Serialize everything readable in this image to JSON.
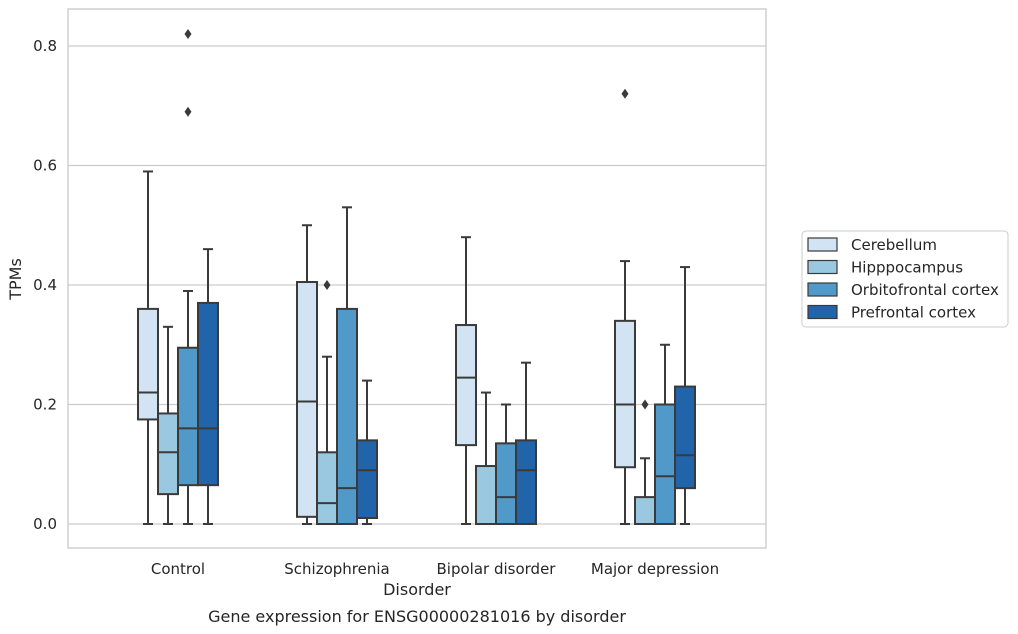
{
  "caption": "Gene expression for ENSG00000281016 by disorder",
  "chart_data": {
    "type": "box",
    "xlabel": "Disorder",
    "ylabel": "TPMs",
    "ylim": [
      -0.04,
      0.86
    ],
    "yticks": [
      "0.0",
      "0.2",
      "0.4",
      "0.6",
      "0.8"
    ],
    "grid": true,
    "legend_position": "right",
    "categories": [
      "Control",
      "Schizophrenia",
      "Bipolar disorder",
      "Major depression"
    ],
    "series": [
      {
        "name": "Cerebellum",
        "color": "#d2e3f3",
        "boxes": [
          {
            "whislo": 0.0,
            "q1": 0.175,
            "med": 0.22,
            "q3": 0.36,
            "whishi": 0.59,
            "fliers": []
          },
          {
            "whislo": 0.0,
            "q1": 0.012,
            "med": 0.205,
            "q3": 0.405,
            "whishi": 0.5,
            "fliers": []
          },
          {
            "whislo": 0.0,
            "q1": 0.132,
            "med": 0.245,
            "q3": 0.333,
            "whishi": 0.48,
            "fliers": []
          },
          {
            "whislo": 0.0,
            "q1": 0.095,
            "med": 0.2,
            "q3": 0.34,
            "whishi": 0.44,
            "fliers": [
              0.72
            ]
          }
        ]
      },
      {
        "name": "Hipppocampus",
        "color": "#9ac8e0",
        "boxes": [
          {
            "whislo": 0.0,
            "q1": 0.05,
            "med": 0.12,
            "q3": 0.185,
            "whishi": 0.33,
            "fliers": []
          },
          {
            "whislo": 0.0,
            "q1": 0.0,
            "med": 0.035,
            "q3": 0.12,
            "whishi": 0.28,
            "fliers": [
              0.4
            ]
          },
          {
            "whislo": 0.0,
            "q1": 0.0,
            "med": 0.0,
            "q3": 0.097,
            "whishi": 0.22,
            "fliers": []
          },
          {
            "whislo": 0.0,
            "q1": 0.0,
            "med": 0.0,
            "q3": 0.045,
            "whishi": 0.11,
            "fliers": [
              0.2
            ]
          }
        ]
      },
      {
        "name": "Orbitofrontal cortex",
        "color": "#5199c9",
        "boxes": [
          {
            "whislo": 0.0,
            "q1": 0.065,
            "med": 0.16,
            "q3": 0.295,
            "whishi": 0.39,
            "fliers": [
              0.69,
              0.82
            ]
          },
          {
            "whislo": 0.0,
            "q1": 0.0,
            "med": 0.06,
            "q3": 0.36,
            "whishi": 0.53,
            "fliers": []
          },
          {
            "whislo": 0.0,
            "q1": 0.0,
            "med": 0.045,
            "q3": 0.135,
            "whishi": 0.2,
            "fliers": []
          },
          {
            "whislo": 0.0,
            "q1": 0.0,
            "med": 0.08,
            "q3": 0.2,
            "whishi": 0.3,
            "fliers": []
          }
        ]
      },
      {
        "name": "Prefrontal cortex",
        "color": "#2264a9",
        "boxes": [
          {
            "whislo": 0.0,
            "q1": 0.065,
            "med": 0.16,
            "q3": 0.37,
            "whishi": 0.46,
            "fliers": []
          },
          {
            "whislo": 0.0,
            "q1": 0.01,
            "med": 0.09,
            "q3": 0.14,
            "whishi": 0.24,
            "fliers": []
          },
          {
            "whislo": 0.0,
            "q1": 0.0,
            "med": 0.09,
            "q3": 0.14,
            "whishi": 0.27,
            "fliers": []
          },
          {
            "whislo": 0.0,
            "q1": 0.06,
            "med": 0.115,
            "q3": 0.23,
            "whishi": 0.43,
            "fliers": []
          }
        ]
      }
    ]
  }
}
